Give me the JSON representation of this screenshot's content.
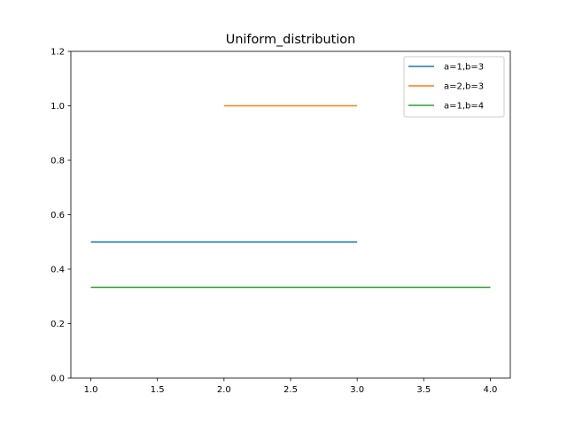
{
  "chart_data": {
    "type": "line",
    "title": "Uniform_distribution",
    "xlabel": "",
    "ylabel": "",
    "xlim": [
      0.85,
      4.15
    ],
    "ylim": [
      0.0,
      1.2
    ],
    "x_ticks": [
      1.0,
      1.5,
      2.0,
      2.5,
      3.0,
      3.5,
      4.0
    ],
    "x_tick_labels": [
      "1.0",
      "1.5",
      "2.0",
      "2.5",
      "3.0",
      "3.5",
      "4.0"
    ],
    "y_ticks": [
      0.0,
      0.2,
      0.4,
      0.6,
      0.8,
      1.0,
      1.2
    ],
    "y_tick_labels": [
      "0.0",
      "0.2",
      "0.4",
      "0.6",
      "0.8",
      "1.0",
      "1.2"
    ],
    "grid": false,
    "legend_position": "top-right",
    "series": [
      {
        "name": "a=1,b=3",
        "color": "#1f77b4",
        "x": [
          1.0,
          3.0
        ],
        "y": [
          0.5,
          0.5
        ]
      },
      {
        "name": "a=2,b=3",
        "color": "#ff7f0e",
        "x": [
          2.0,
          3.0
        ],
        "y": [
          1.0,
          1.0
        ]
      },
      {
        "name": "a=1,b=4",
        "color": "#2ca02c",
        "x": [
          1.0,
          4.0
        ],
        "y": [
          0.3333,
          0.3333
        ]
      }
    ]
  }
}
